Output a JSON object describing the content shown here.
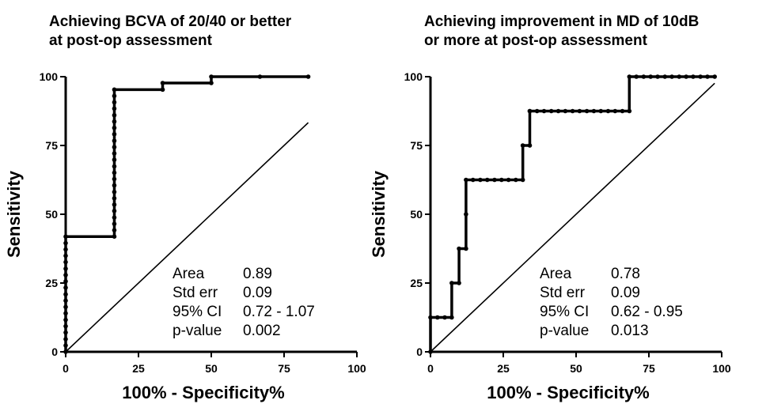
{
  "chart_data": [
    {
      "type": "line",
      "title": "Achieving BCVA of 20/40 or better at post-op assessment",
      "title_lines": [
        "Achieving BCVA of 20/40 or better",
        "at post-op assessment"
      ],
      "xlabel": "100% - Specificity%",
      "ylabel": "Sensitivity",
      "xlim": [
        0,
        100
      ],
      "ylim": [
        0,
        100
      ],
      "xticks": [
        "0",
        "25",
        "50",
        "75",
        "100"
      ],
      "yticks": [
        "0",
        "25",
        "50",
        "75",
        "100"
      ],
      "series": [
        {
          "curve": "roc",
          "x": [
            0,
            0,
            0,
            0,
            0,
            0,
            0,
            0,
            0,
            0,
            0,
            0,
            0,
            0,
            0,
            0,
            0,
            0,
            0,
            16.7,
            16.7,
            16.7,
            16.7,
            16.7,
            16.7,
            16.7,
            16.7,
            16.7,
            16.7,
            16.7,
            16.7,
            16.7,
            16.7,
            16.7,
            16.7,
            16.7,
            16.7,
            16.7,
            16.7,
            16.7,
            16.7,
            16.7,
            16.7,
            33.3,
            33.3,
            50,
            50,
            66.7,
            83.3
          ],
          "y": [
            0,
            2.3,
            4.6,
            7,
            9.3,
            11.6,
            14,
            16.3,
            18.6,
            20.9,
            23.3,
            25.6,
            27.9,
            30.2,
            32.6,
            34.9,
            37.2,
            39.5,
            41.9,
            41.9,
            44.2,
            46.5,
            48.8,
            51.2,
            53.5,
            55.8,
            58.1,
            60.5,
            62.8,
            65.1,
            67.4,
            69.8,
            72.1,
            74.4,
            76.7,
            79.1,
            81.4,
            83.7,
            86,
            88.4,
            90.7,
            93,
            95.3,
            95.3,
            97.7,
            97.7,
            100,
            100,
            100
          ]
        },
        {
          "curve": "reference",
          "x": [
            0,
            83.3
          ],
          "y": [
            0,
            83.3
          ]
        }
      ],
      "stats": {
        "labels": [
          "Area",
          "Std err",
          "95% CI",
          "p-value"
        ],
        "values": [
          "0.89",
          "0.09",
          "0.72 - 1.07",
          "0.002"
        ]
      }
    },
    {
      "type": "line",
      "title": "Achieving improvement in MD of 10dB or more at post-op assessment",
      "title_lines": [
        "Achieving improvement in MD of 10dB",
        "or more at post-op assessment"
      ],
      "xlabel": "100% - Specificity%",
      "ylabel": "Sensitivity",
      "xlim": [
        0,
        100
      ],
      "ylim": [
        0,
        100
      ],
      "xticks": [
        "0",
        "25",
        "50",
        "75",
        "100"
      ],
      "yticks": [
        "0",
        "25",
        "50",
        "75",
        "100"
      ],
      "series": [
        {
          "curve": "roc",
          "x": [
            0,
            0,
            2.4,
            4.9,
            7.3,
            7.3,
            9.8,
            9.8,
            12.2,
            12.2,
            12.2,
            14.6,
            17.1,
            19.5,
            22,
            24.4,
            26.8,
            29.3,
            31.7,
            31.7,
            34.1,
            34.1,
            34.1,
            36.6,
            39,
            41.5,
            43.9,
            46.3,
            48.8,
            51.2,
            53.7,
            56.1,
            58.5,
            61,
            63.4,
            65.9,
            68.3,
            68.3,
            70.7,
            73.2,
            75.6,
            78,
            80.5,
            82.9,
            85.4,
            87.8,
            90.2,
            92.7,
            95.1,
            97.6
          ],
          "y": [
            0,
            12.5,
            12.5,
            12.5,
            12.5,
            25,
            25,
            37.5,
            37.5,
            50,
            62.5,
            62.5,
            62.5,
            62.5,
            62.5,
            62.5,
            62.5,
            62.5,
            62.5,
            75,
            75,
            87.5,
            87.5,
            87.5,
            87.5,
            87.5,
            87.5,
            87.5,
            87.5,
            87.5,
            87.5,
            87.5,
            87.5,
            87.5,
            87.5,
            87.5,
            87.5,
            100,
            100,
            100,
            100,
            100,
            100,
            100,
            100,
            100,
            100,
            100,
            100,
            100
          ]
        },
        {
          "curve": "reference",
          "x": [
            0,
            97.6
          ],
          "y": [
            0,
            97.6
          ]
        }
      ],
      "stats": {
        "labels": [
          "Area",
          "Std err",
          "95% CI",
          "p-value"
        ],
        "values": [
          "0.78",
          "0.09",
          "0.62 - 0.95",
          "0.013"
        ]
      }
    }
  ]
}
